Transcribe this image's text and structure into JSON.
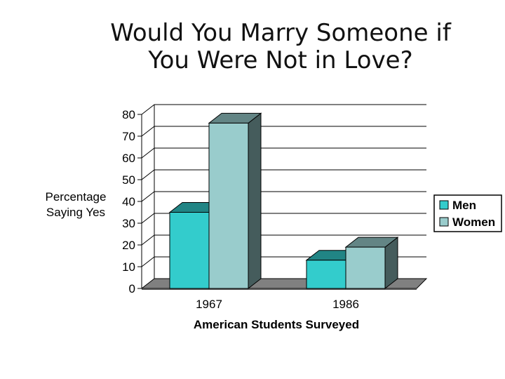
{
  "title_line1": "Would You Marry Someone if",
  "title_line2": "You Were Not in Love?",
  "chart_data": {
    "type": "bar",
    "title": "Would You Marry Someone if You Were Not in Love?",
    "xlabel": "American Students Surveyed",
    "ylabel": [
      "Percentage",
      "Saying Yes"
    ],
    "categories": [
      "1967",
      "1986"
    ],
    "series": [
      {
        "name": "Men",
        "values": [
          35,
          13
        ],
        "color": "#33cccc"
      },
      {
        "name": "Women",
        "values": [
          76,
          19
        ],
        "color": "#99cccc"
      }
    ],
    "ylim": [
      0,
      80
    ],
    "yticks": [
      0,
      10,
      20,
      30,
      40,
      50,
      60,
      70,
      80
    ],
    "grid": true,
    "legend": "right",
    "three_d": true
  }
}
